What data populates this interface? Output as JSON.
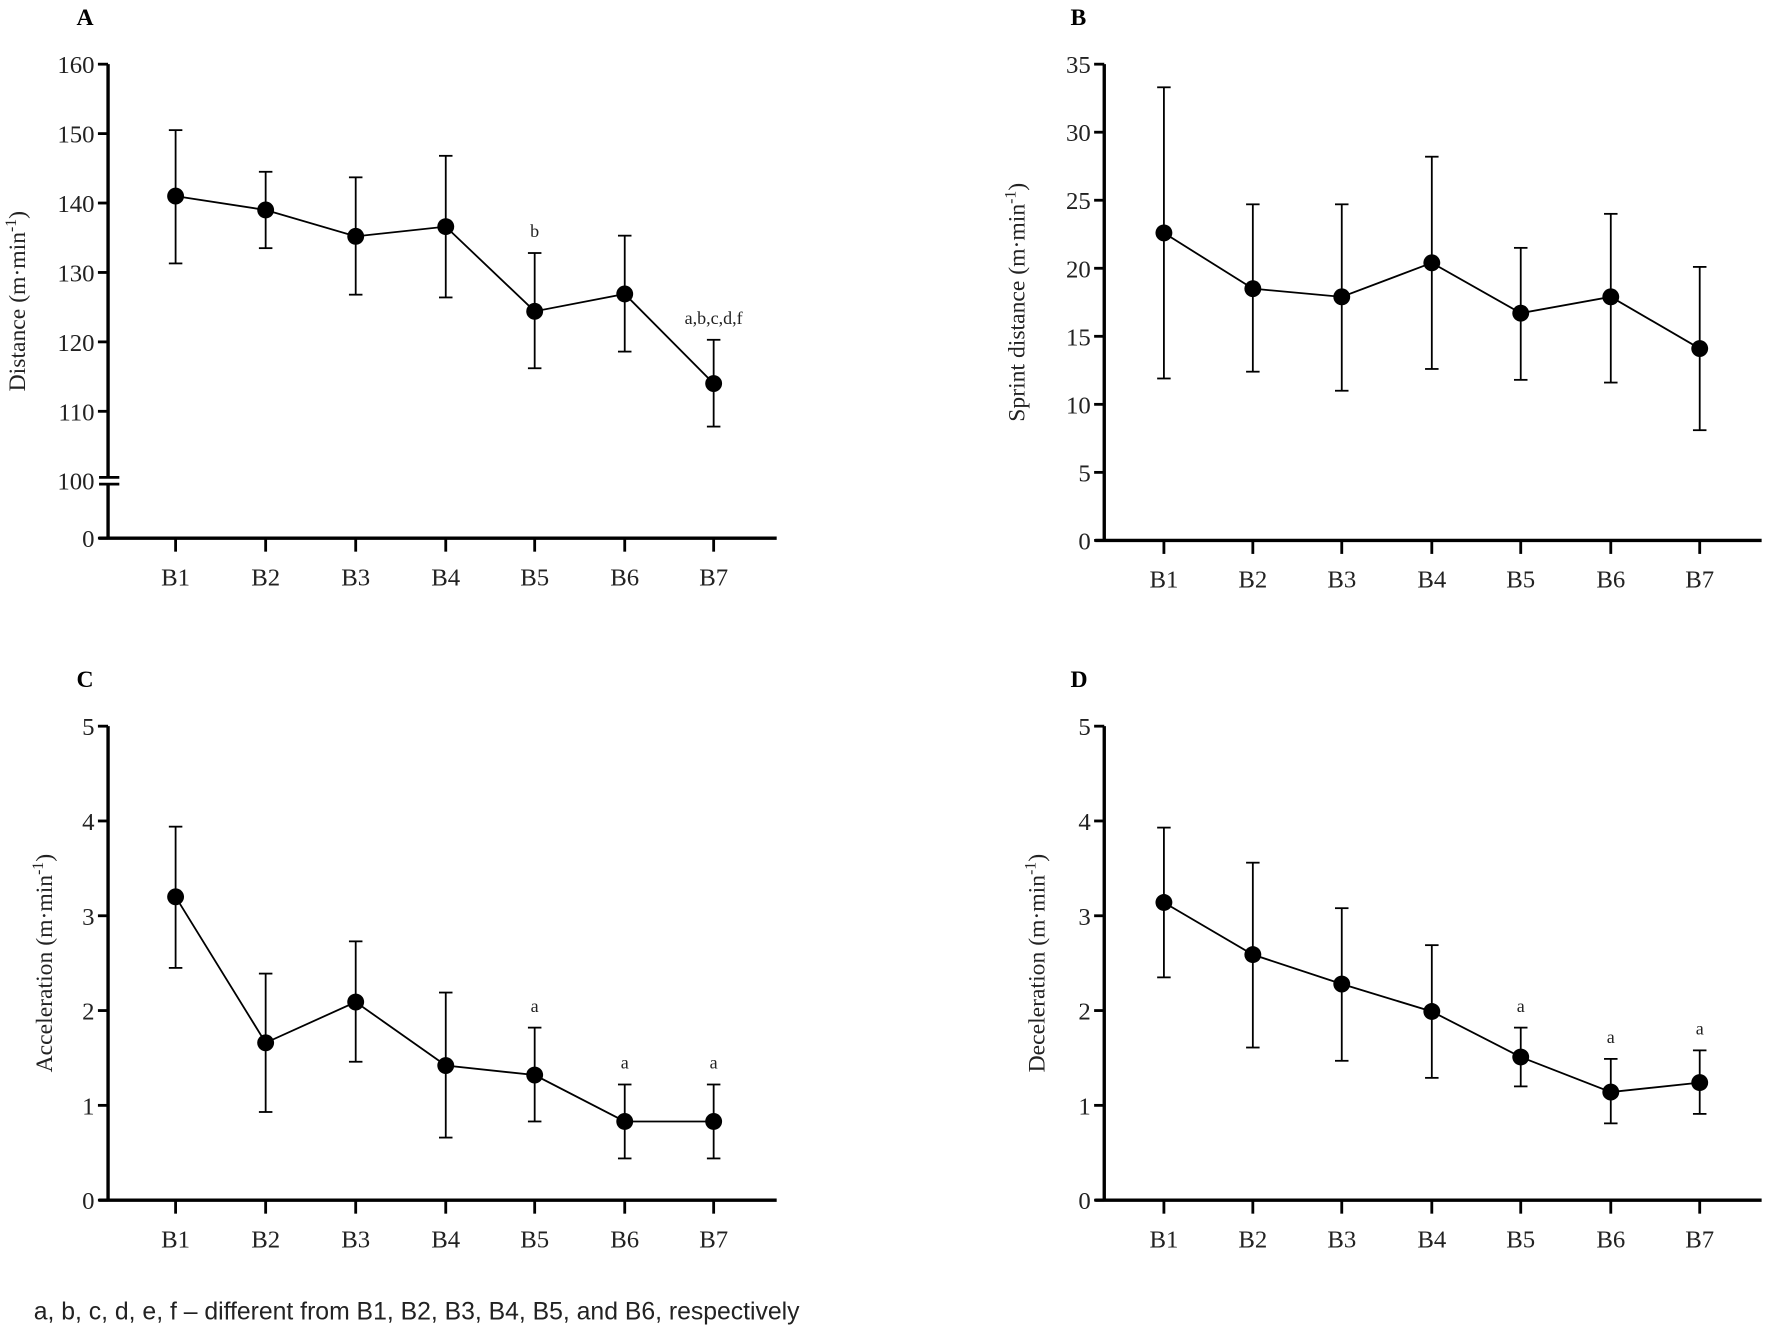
{
  "figure": {
    "footnote": "a, b, c, d, e, f – different from B1, B2, B3, B4, B5, and B6, respectively"
  },
  "chart_data": [
    {
      "panel": "A",
      "type": "line",
      "title": "",
      "xlabel": "",
      "ylabel": "Distance (m·min⁻¹)",
      "ylabel_main": "Distance (m·min",
      "ylabel_sup": "-1",
      "ylabel_end": ")",
      "categories": [
        "B1",
        "B2",
        "B3",
        "B4",
        "B5",
        "B6",
        "B7"
      ],
      "y_ticks": [
        0,
        100,
        110,
        120,
        130,
        140,
        150,
        160
      ],
      "axis_break": [
        0,
        100
      ],
      "ylim": [
        100,
        160
      ],
      "grid": false,
      "series": [
        {
          "name": "Distance",
          "values": [
            141.0,
            139.0,
            135.2,
            136.6,
            124.4,
            126.9,
            114.0
          ],
          "error_low": [
            131.3,
            133.5,
            126.8,
            126.4,
            116.2,
            118.6,
            107.8
          ],
          "error_high": [
            150.5,
            144.5,
            143.7,
            146.8,
            132.8,
            135.3,
            120.3
          ]
        }
      ],
      "annotations": [
        "",
        "",
        "",
        "",
        "b",
        "",
        "a,b,c,d,f"
      ]
    },
    {
      "panel": "B",
      "type": "line",
      "title": "",
      "xlabel": "",
      "ylabel": "Sprint distance (m·min⁻¹)",
      "ylabel_main": "Sprint distance (m·min",
      "ylabel_sup": "-1",
      "ylabel_end": ")",
      "categories": [
        "B1",
        "B2",
        "B3",
        "B4",
        "B5",
        "B6",
        "B7"
      ],
      "y_ticks": [
        0,
        5,
        10,
        15,
        20,
        25,
        30,
        35
      ],
      "ylim": [
        0,
        35
      ],
      "grid": false,
      "series": [
        {
          "name": "Sprint distance",
          "values": [
            22.6,
            18.5,
            17.9,
            20.4,
            16.7,
            17.9,
            14.1
          ],
          "error_low": [
            11.9,
            12.4,
            11.0,
            12.6,
            11.8,
            11.6,
            8.1
          ],
          "error_high": [
            33.3,
            24.7,
            24.7,
            28.2,
            21.5,
            24.0,
            20.1
          ]
        }
      ],
      "annotations": [
        "",
        "",
        "",
        "",
        "",
        "",
        ""
      ]
    },
    {
      "panel": "C",
      "type": "line",
      "title": "",
      "xlabel": "",
      "ylabel": "Acceleration (m·min⁻¹)",
      "ylabel_main": "Acceleration (m·min",
      "ylabel_sup": "-1",
      "ylabel_end": ")",
      "categories": [
        "B1",
        "B2",
        "B3",
        "B4",
        "B5",
        "B6",
        "B7"
      ],
      "y_ticks": [
        0,
        1,
        2,
        3,
        4,
        5
      ],
      "ylim": [
        0,
        5
      ],
      "grid": false,
      "series": [
        {
          "name": "Acceleration",
          "values": [
            3.2,
            1.66,
            2.09,
            1.42,
            1.32,
            0.83,
            0.83
          ],
          "error_low": [
            2.45,
            0.93,
            1.46,
            0.66,
            0.83,
            0.44,
            0.44
          ],
          "error_high": [
            3.94,
            2.39,
            2.73,
            2.19,
            1.82,
            1.22,
            1.22
          ]
        }
      ],
      "annotations": [
        "",
        "",
        "",
        "",
        "a",
        "a",
        "a"
      ]
    },
    {
      "panel": "D",
      "type": "line",
      "title": "",
      "xlabel": "",
      "ylabel": "Deceleration (m·min⁻¹)",
      "ylabel_main": "Deceleration (m·min",
      "ylabel_sup": "-1",
      "ylabel_end": ")",
      "categories": [
        "B1",
        "B2",
        "B3",
        "B4",
        "B5",
        "B6",
        "B7"
      ],
      "y_ticks": [
        0,
        1,
        2,
        3,
        4,
        5
      ],
      "ylim": [
        0,
        5
      ],
      "grid": false,
      "series": [
        {
          "name": "Deceleration",
          "values": [
            3.14,
            2.59,
            2.28,
            1.99,
            1.51,
            1.14,
            1.24
          ],
          "error_low": [
            2.35,
            1.61,
            1.47,
            1.29,
            1.2,
            0.81,
            0.91
          ],
          "error_high": [
            3.93,
            3.56,
            3.08,
            2.69,
            1.82,
            1.49,
            1.58
          ]
        }
      ],
      "annotations": [
        "",
        "",
        "",
        "",
        "a",
        "a",
        "a"
      ]
    }
  ]
}
